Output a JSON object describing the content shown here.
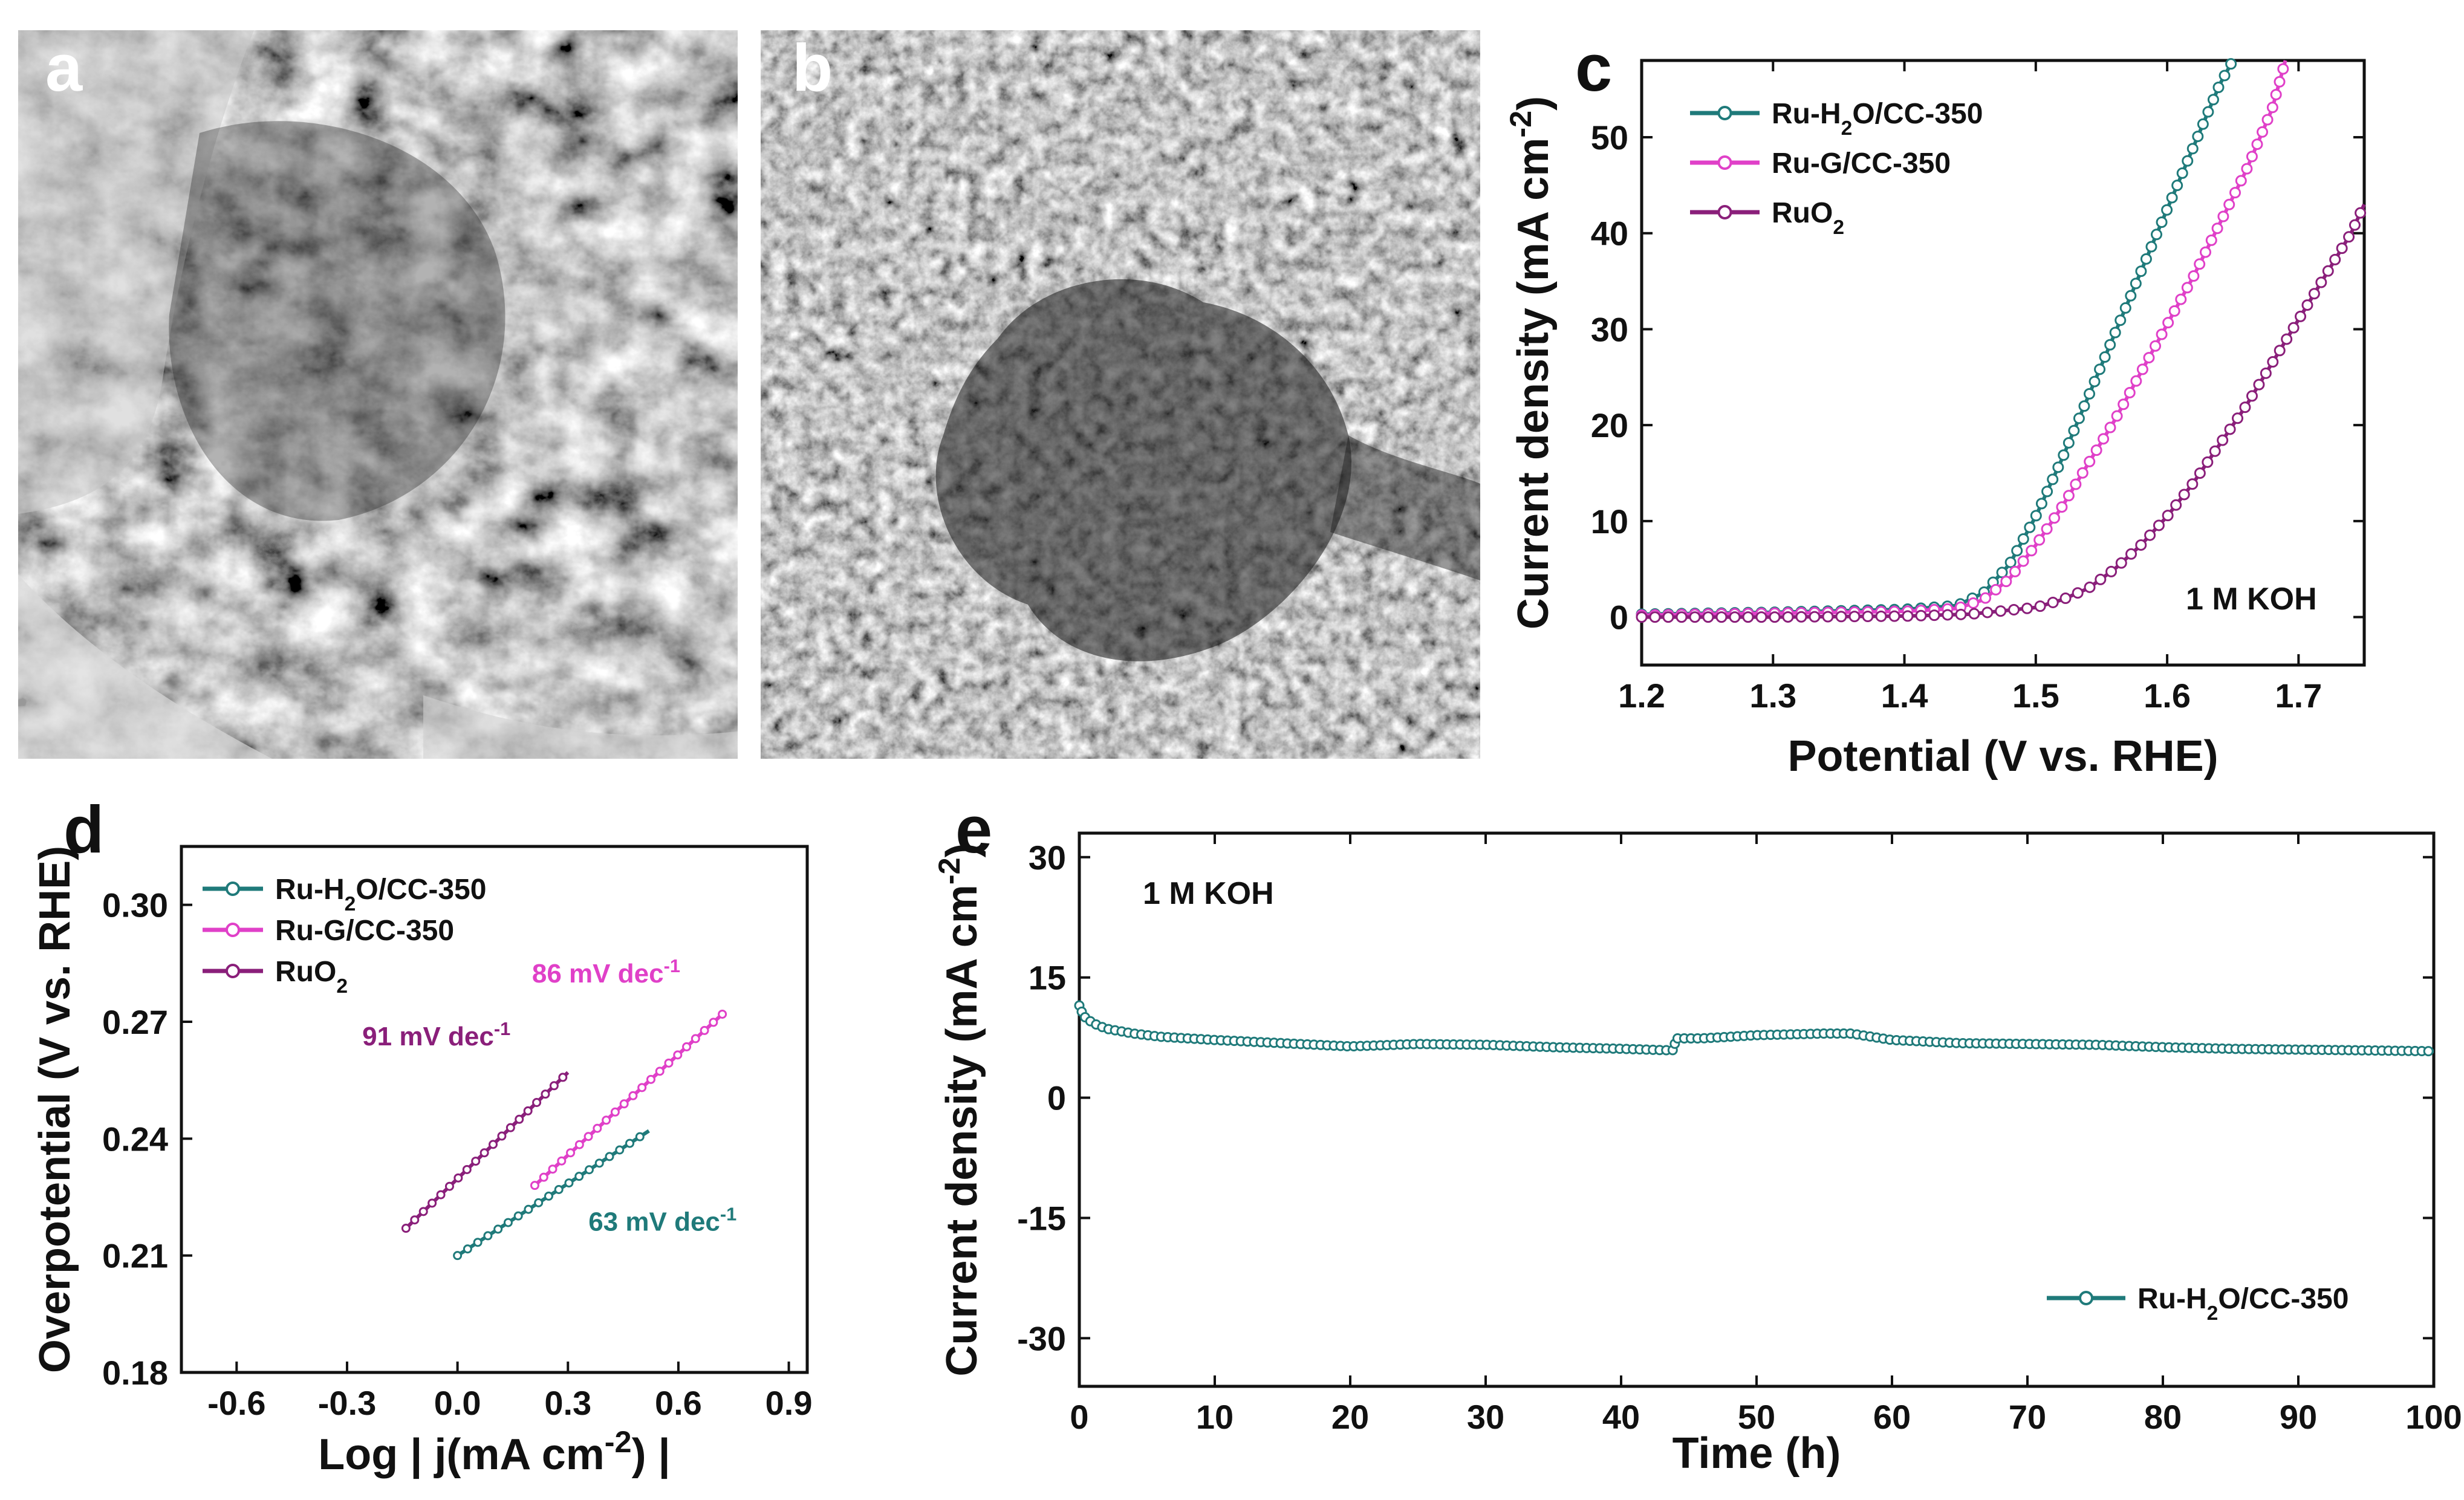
{
  "panels": {
    "a": {
      "letter": "a"
    },
    "b": {
      "letter": "b"
    }
  },
  "chart_data": [
    {
      "panel": "c",
      "type": "line",
      "title": "",
      "xlabel": "Potential (V vs. RHE)",
      "ylabel": "Current density (mA cm-2)",
      "annotation": "1 M KOH",
      "xlim": [
        1.2,
        1.75
      ],
      "ylim": [
        -5,
        58
      ],
      "xticks": [
        "1.2",
        "1.3",
        "1.4",
        "1.5",
        "1.6",
        "1.7"
      ],
      "yticks": [
        "0",
        "10",
        "20",
        "30",
        "40",
        "50"
      ],
      "series": [
        {
          "name": "Ru-H2O/CC-350",
          "color": "#1f7a7a",
          "x": [
            1.2,
            1.3,
            1.4,
            1.44,
            1.46,
            1.48,
            1.5,
            1.52,
            1.54,
            1.56,
            1.58,
            1.6,
            1.62,
            1.64,
            1.65
          ],
          "y": [
            0.3,
            0.5,
            0.8,
            1.2,
            2.5,
            5.5,
            10.5,
            16.5,
            23,
            29.5,
            36,
            42.5,
            49,
            55.5,
            58
          ]
        },
        {
          "name": "Ru-G/CC-350",
          "color": "#e040c8",
          "x": [
            1.2,
            1.3,
            1.4,
            1.44,
            1.46,
            1.48,
            1.5,
            1.52,
            1.54,
            1.56,
            1.58,
            1.6,
            1.62,
            1.64,
            1.66,
            1.68,
            1.69
          ],
          "y": [
            0.2,
            0.4,
            0.6,
            0.9,
            1.8,
            4,
            7.5,
            11.5,
            16,
            20.5,
            25.5,
            30.5,
            35.5,
            41,
            46.5,
            53,
            58
          ]
        },
        {
          "name": "RuO2",
          "color": "#8a1f7a",
          "x": [
            1.2,
            1.3,
            1.4,
            1.45,
            1.5,
            1.52,
            1.54,
            1.56,
            1.58,
            1.6,
            1.62,
            1.64,
            1.66,
            1.68,
            1.7,
            1.72,
            1.74,
            1.75
          ],
          "y": [
            0,
            0,
            0.1,
            0.3,
            1.0,
            1.8,
            3,
            5,
            7.5,
            10.5,
            14,
            18,
            22,
            26.5,
            31,
            35.5,
            40,
            43
          ]
        }
      ]
    },
    {
      "panel": "d",
      "type": "line",
      "title": "",
      "xlabel": "Log | j(mA cm-2) |",
      "ylabel": "Overpotential (V vs. RHE)",
      "xlim": [
        -0.75,
        0.95
      ],
      "ylim": [
        0.18,
        0.315
      ],
      "xticks": [
        "-0.6",
        "-0.3",
        "0.0",
        "0.3",
        "0.6",
        "0.9"
      ],
      "yticks": [
        "0.18",
        "0.21",
        "0.24",
        "0.27",
        "0.30"
      ],
      "series": [
        {
          "name": "Ru-H2O/CC-350",
          "color": "#1f7a7a",
          "slope_label": "63 mV dec-1",
          "x": [
            0.0,
            0.52
          ],
          "y": [
            0.21,
            0.242
          ]
        },
        {
          "name": "Ru-G/CC-350",
          "color": "#e040c8",
          "slope_label": "86 mV dec-1",
          "x": [
            0.21,
            0.72
          ],
          "y": [
            0.228,
            0.272
          ]
        },
        {
          "name": "RuO2",
          "color": "#8a1f7a",
          "slope_label": "91 mV dec-1",
          "x": [
            -0.14,
            0.3
          ],
          "y": [
            0.217,
            0.257
          ]
        }
      ]
    },
    {
      "panel": "e",
      "type": "line",
      "title": "",
      "xlabel": "Time (h)",
      "ylabel": "Current density (mA cm-2)",
      "annotation": "1 M KOH",
      "xlim": [
        0,
        100
      ],
      "ylim": [
        -36,
        33
      ],
      "xticks": [
        "0",
        "10",
        "20",
        "30",
        "40",
        "50",
        "60",
        "70",
        "80",
        "90",
        "100"
      ],
      "yticks": [
        "-30",
        "-15",
        "0",
        "15",
        "30"
      ],
      "series": [
        {
          "name": "Ru-H2O/CC-350",
          "color": "#1f7a7a",
          "x": [
            0,
            0.3,
            1,
            2,
            4,
            6,
            10,
            15,
            20,
            25,
            30,
            35,
            40,
            43.8,
            44.1,
            46,
            50,
            55,
            57,
            60,
            65,
            70,
            75,
            80,
            85,
            90,
            95,
            100
          ],
          "y": [
            11.5,
            10.2,
            9.3,
            8.6,
            8.0,
            7.6,
            7.2,
            6.8,
            6.4,
            6.7,
            6.6,
            6.3,
            6.1,
            5.9,
            7.4,
            7.4,
            7.8,
            8.0,
            8.0,
            7.2,
            6.8,
            6.7,
            6.6,
            6.3,
            6.1,
            6.0,
            5.9,
            5.8
          ]
        }
      ]
    }
  ]
}
